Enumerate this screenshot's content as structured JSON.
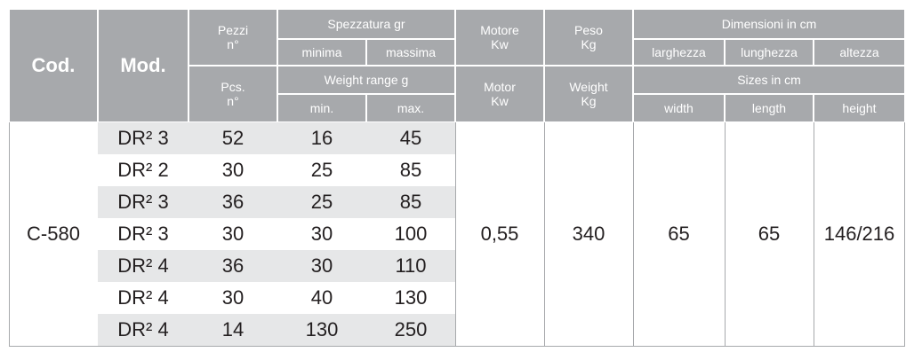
{
  "header": {
    "cod": "Cod.",
    "mod": "Mod.",
    "pezzi": [
      "Pezzi",
      "n°"
    ],
    "pcs": [
      "Pcs.",
      "n°"
    ],
    "spezzatura": "Spezzatura gr",
    "minima": "minima",
    "massima": "massima",
    "weight_range": "Weight range g",
    "min": "min.",
    "max": "max.",
    "motore": [
      "Motore",
      "Kw"
    ],
    "motor": [
      "Motor",
      "Kw"
    ],
    "peso": [
      "Peso",
      "Kg"
    ],
    "weight": [
      "Weight",
      "Kg"
    ],
    "dimensioni": "Dimensioni in cm",
    "larghezza": "larghezza",
    "lunghezza": "lunghezza",
    "altezza": "altezza",
    "sizes": "Sizes in cm",
    "width": "width",
    "length": "length",
    "height": "height"
  },
  "table": {
    "cod": "C-580",
    "motor": "0,55",
    "weight": "340",
    "width": "65",
    "length": "65",
    "height": "146/216",
    "rows": [
      [
        "DR² 3",
        "52",
        "16",
        "45"
      ],
      [
        "DR² 2",
        "30",
        "25",
        "85"
      ],
      [
        "DR² 3",
        "36",
        "25",
        "85"
      ],
      [
        "DR² 3",
        "30",
        "30",
        "100"
      ],
      [
        "DR² 4",
        "36",
        "30",
        "110"
      ],
      [
        "DR² 4",
        "30",
        "40",
        "130"
      ],
      [
        "DR² 4",
        "14",
        "130",
        "250"
      ]
    ]
  }
}
